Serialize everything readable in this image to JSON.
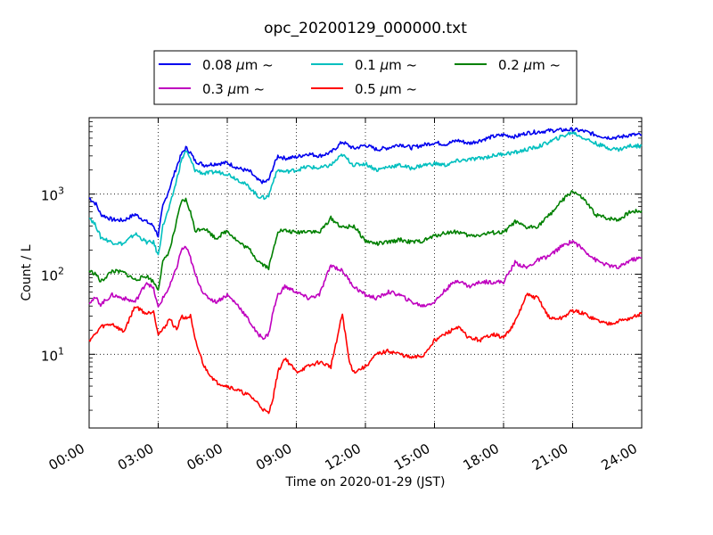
{
  "chart_data": {
    "type": "line",
    "title": "opc_20200129_000000.txt",
    "xlabel": "Time on 2020-01-29 (JST)",
    "ylabel": "Count / L",
    "yscale": "log",
    "xlim": [
      "00:00",
      "24:00"
    ],
    "ylim": [
      1.2,
      9000
    ],
    "x_ticks": [
      "00:00",
      "03:00",
      "06:00",
      "09:00",
      "12:00",
      "15:00",
      "18:00",
      "21:00",
      "24:00"
    ],
    "y_ticks": [
      {
        "label": "10",
        "exp": "1",
        "value": 10
      },
      {
        "label": "10",
        "exp": "2",
        "value": 100
      },
      {
        "label": "10",
        "exp": "3",
        "value": 1000
      }
    ],
    "grid": true,
    "legend": {
      "placement": "top-center",
      "columns": 3
    },
    "x_unit": "hours since 00:00",
    "series": [
      {
        "name": "0.08 μm ~",
        "legend_size": "0.08",
        "color": "#0000ee",
        "points": [
          [
            0,
            900
          ],
          [
            0.3,
            750
          ],
          [
            0.5,
            560
          ],
          [
            1,
            480
          ],
          [
            1.5,
            470
          ],
          [
            2,
            560
          ],
          [
            2.5,
            450
          ],
          [
            2.8,
            400
          ],
          [
            3,
            300
          ],
          [
            3.2,
            700
          ],
          [
            3.5,
            1200
          ],
          [
            3.8,
            2200
          ],
          [
            4,
            3100
          ],
          [
            4.2,
            3800
          ],
          [
            4.4,
            3300
          ],
          [
            4.6,
            2600
          ],
          [
            5,
            2300
          ],
          [
            5.5,
            2400
          ],
          [
            6,
            2450
          ],
          [
            6.5,
            2100
          ],
          [
            7,
            1900
          ],
          [
            7.3,
            1500
          ],
          [
            7.6,
            1400
          ],
          [
            7.8,
            1500
          ],
          [
            8,
            2200
          ],
          [
            8.2,
            3000
          ],
          [
            8.5,
            2800
          ],
          [
            9,
            2900
          ],
          [
            9.5,
            3200
          ],
          [
            10,
            3000
          ],
          [
            10.5,
            3300
          ],
          [
            11,
            4500
          ],
          [
            11.5,
            3700
          ],
          [
            12,
            4100
          ],
          [
            12.5,
            3600
          ],
          [
            13,
            3800
          ],
          [
            13.5,
            4200
          ],
          [
            14,
            3800
          ],
          [
            14.5,
            4100
          ],
          [
            15,
            4400
          ],
          [
            15.5,
            4200
          ],
          [
            16,
            4700
          ],
          [
            16.5,
            4300
          ],
          [
            17,
            4700
          ],
          [
            17.5,
            5200
          ],
          [
            18,
            5500
          ],
          [
            18.5,
            5200
          ],
          [
            19,
            5800
          ],
          [
            19.5,
            6000
          ],
          [
            20,
            6200
          ],
          [
            20.5,
            6300
          ],
          [
            21,
            6400
          ],
          [
            21.5,
            6100
          ],
          [
            22,
            5500
          ],
          [
            22.5,
            5100
          ],
          [
            23,
            5100
          ],
          [
            23.5,
            5500
          ],
          [
            24,
            5500
          ]
        ]
      },
      {
        "name": "0.1 μm ~",
        "legend_size": "0.1",
        "color": "#00bfbf",
        "points": [
          [
            0,
            520
          ],
          [
            0.3,
            400
          ],
          [
            0.5,
            290
          ],
          [
            1,
            250
          ],
          [
            1.5,
            240
          ],
          [
            2,
            320
          ],
          [
            2.5,
            250
          ],
          [
            2.8,
            250
          ],
          [
            3,
            170
          ],
          [
            3.2,
            400
          ],
          [
            3.5,
            700
          ],
          [
            3.8,
            1500
          ],
          [
            4,
            2600
          ],
          [
            4.2,
            3500
          ],
          [
            4.4,
            2700
          ],
          [
            4.6,
            2000
          ],
          [
            5,
            1800
          ],
          [
            5.5,
            1900
          ],
          [
            6,
            1800
          ],
          [
            6.5,
            1500
          ],
          [
            7,
            1200
          ],
          [
            7.3,
            950
          ],
          [
            7.6,
            900
          ],
          [
            7.8,
            950
          ],
          [
            8,
            1500
          ],
          [
            8.2,
            2000
          ],
          [
            8.5,
            1900
          ],
          [
            9,
            2000
          ],
          [
            9.5,
            2200
          ],
          [
            10,
            2100
          ],
          [
            10.5,
            2300
          ],
          [
            11,
            3100
          ],
          [
            11.5,
            2300
          ],
          [
            12,
            2400
          ],
          [
            12.5,
            2000
          ],
          [
            13,
            2200
          ],
          [
            13.5,
            2300
          ],
          [
            14,
            2100
          ],
          [
            14.5,
            2300
          ],
          [
            15,
            2400
          ],
          [
            15.5,
            2300
          ],
          [
            16,
            2600
          ],
          [
            16.5,
            2700
          ],
          [
            17,
            2800
          ],
          [
            17.5,
            3000
          ],
          [
            18,
            3200
          ],
          [
            18.5,
            3300
          ],
          [
            19,
            3600
          ],
          [
            19.5,
            3900
          ],
          [
            20,
            4500
          ],
          [
            20.5,
            5200
          ],
          [
            21,
            5900
          ],
          [
            21.5,
            5000
          ],
          [
            22,
            4300
          ],
          [
            22.5,
            3800
          ],
          [
            23,
            3600
          ],
          [
            23.5,
            4000
          ],
          [
            24,
            4000
          ]
        ]
      },
      {
        "name": "0.2 μm ~",
        "legend_size": "0.2",
        "color": "#008000",
        "points": [
          [
            0,
            110
          ],
          [
            0.3,
            100
          ],
          [
            0.5,
            80
          ],
          [
            1,
            110
          ],
          [
            1.5,
            105
          ],
          [
            2,
            85
          ],
          [
            2.5,
            95
          ],
          [
            2.8,
            80
          ],
          [
            3,
            65
          ],
          [
            3.2,
            140
          ],
          [
            3.5,
            200
          ],
          [
            3.8,
            450
          ],
          [
            4,
            800
          ],
          [
            4.2,
            850
          ],
          [
            4.4,
            600
          ],
          [
            4.6,
            350
          ],
          [
            5,
            380
          ],
          [
            5.5,
            280
          ],
          [
            6,
            350
          ],
          [
            6.5,
            250
          ],
          [
            7,
            200
          ],
          [
            7.3,
            150
          ],
          [
            7.6,
            130
          ],
          [
            7.8,
            120
          ],
          [
            8,
            200
          ],
          [
            8.2,
            350
          ],
          [
            8.5,
            350
          ],
          [
            9,
            330
          ],
          [
            9.5,
            350
          ],
          [
            10,
            330
          ],
          [
            10.5,
            500
          ],
          [
            11,
            380
          ],
          [
            11.5,
            400
          ],
          [
            12,
            260
          ],
          [
            12.5,
            240
          ],
          [
            13,
            250
          ],
          [
            13.5,
            270
          ],
          [
            14,
            250
          ],
          [
            14.5,
            260
          ],
          [
            15,
            300
          ],
          [
            15.5,
            330
          ],
          [
            16,
            340
          ],
          [
            16.5,
            300
          ],
          [
            17,
            310
          ],
          [
            17.5,
            330
          ],
          [
            18,
            330
          ],
          [
            18.5,
            450
          ],
          [
            19,
            380
          ],
          [
            19.5,
            400
          ],
          [
            20,
            550
          ],
          [
            20.5,
            800
          ],
          [
            21,
            1100
          ],
          [
            21.5,
            850
          ],
          [
            22,
            550
          ],
          [
            22.5,
            500
          ],
          [
            23,
            480
          ],
          [
            23.5,
            600
          ],
          [
            24,
            620
          ]
        ]
      },
      {
        "name": "0.3 μm ~",
        "legend_size": "0.3",
        "color": "#bf00bf",
        "points": [
          [
            0,
            45
          ],
          [
            0.3,
            50
          ],
          [
            0.5,
            42
          ],
          [
            1,
            55
          ],
          [
            1.5,
            50
          ],
          [
            2,
            45
          ],
          [
            2.5,
            80
          ],
          [
            2.8,
            65
          ],
          [
            3,
            38
          ],
          [
            3.2,
            50
          ],
          [
            3.5,
            70
          ],
          [
            3.8,
            120
          ],
          [
            4,
            200
          ],
          [
            4.2,
            220
          ],
          [
            4.4,
            160
          ],
          [
            4.6,
            100
          ],
          [
            5,
            55
          ],
          [
            5.5,
            45
          ],
          [
            6,
            55
          ],
          [
            6.5,
            40
          ],
          [
            7,
            25
          ],
          [
            7.3,
            18
          ],
          [
            7.6,
            16
          ],
          [
            7.8,
            18
          ],
          [
            8,
            35
          ],
          [
            8.2,
            55
          ],
          [
            8.5,
            70
          ],
          [
            9,
            60
          ],
          [
            9.5,
            50
          ],
          [
            10,
            55
          ],
          [
            10.5,
            130
          ],
          [
            11,
            110
          ],
          [
            11.5,
            70
          ],
          [
            12,
            55
          ],
          [
            12.5,
            50
          ],
          [
            13,
            60
          ],
          [
            13.5,
            55
          ],
          [
            14,
            45
          ],
          [
            14.5,
            40
          ],
          [
            15,
            45
          ],
          [
            15.5,
            65
          ],
          [
            16,
            85
          ],
          [
            16.5,
            70
          ],
          [
            17,
            80
          ],
          [
            17.5,
            80
          ],
          [
            18,
            80
          ],
          [
            18.5,
            140
          ],
          [
            19,
            120
          ],
          [
            19.5,
            150
          ],
          [
            20,
            170
          ],
          [
            20.5,
            220
          ],
          [
            21,
            260
          ],
          [
            21.5,
            200
          ],
          [
            22,
            150
          ],
          [
            22.5,
            130
          ],
          [
            23,
            120
          ],
          [
            23.5,
            150
          ],
          [
            24,
            160
          ]
        ]
      },
      {
        "name": "0.5 μm ~",
        "legend_size": "0.5",
        "color": "#ff0000",
        "points": [
          [
            0,
            15
          ],
          [
            0.3,
            18
          ],
          [
            0.5,
            22
          ],
          [
            1,
            24
          ],
          [
            1.5,
            19
          ],
          [
            2,
            40
          ],
          [
            2.5,
            32
          ],
          [
            2.8,
            35
          ],
          [
            3,
            18
          ],
          [
            3.2,
            20
          ],
          [
            3.5,
            28
          ],
          [
            3.8,
            20
          ],
          [
            4,
            30
          ],
          [
            4.2,
            28
          ],
          [
            4.4,
            30
          ],
          [
            4.6,
            15
          ],
          [
            5,
            7
          ],
          [
            5.5,
            4.5
          ],
          [
            6,
            4
          ],
          [
            6.5,
            3.5
          ],
          [
            7,
            3
          ],
          [
            7.3,
            2.5
          ],
          [
            7.6,
            2
          ],
          [
            7.8,
            1.8
          ],
          [
            8,
            3
          ],
          [
            8.2,
            6
          ],
          [
            8.5,
            9
          ],
          [
            9,
            6
          ],
          [
            9.5,
            7
          ],
          [
            10,
            8
          ],
          [
            10.5,
            7
          ],
          [
            11,
            32
          ],
          [
            11.3,
            8
          ],
          [
            11.5,
            6
          ],
          [
            12,
            7
          ],
          [
            12.5,
            10
          ],
          [
            13,
            11
          ],
          [
            13.5,
            10
          ],
          [
            14,
            9
          ],
          [
            14.5,
            9.5
          ],
          [
            15,
            15
          ],
          [
            15.5,
            18
          ],
          [
            16,
            22
          ],
          [
            16.5,
            16
          ],
          [
            17,
            15
          ],
          [
            17.5,
            18
          ],
          [
            18,
            16
          ],
          [
            18.5,
            25
          ],
          [
            19,
            55
          ],
          [
            19.5,
            50
          ],
          [
            20,
            28
          ],
          [
            20.5,
            28
          ],
          [
            21,
            35
          ],
          [
            21.5,
            32
          ],
          [
            22,
            27
          ],
          [
            22.5,
            24
          ],
          [
            23,
            26
          ],
          [
            23.5,
            28
          ],
          [
            24,
            32
          ]
        ]
      }
    ]
  }
}
